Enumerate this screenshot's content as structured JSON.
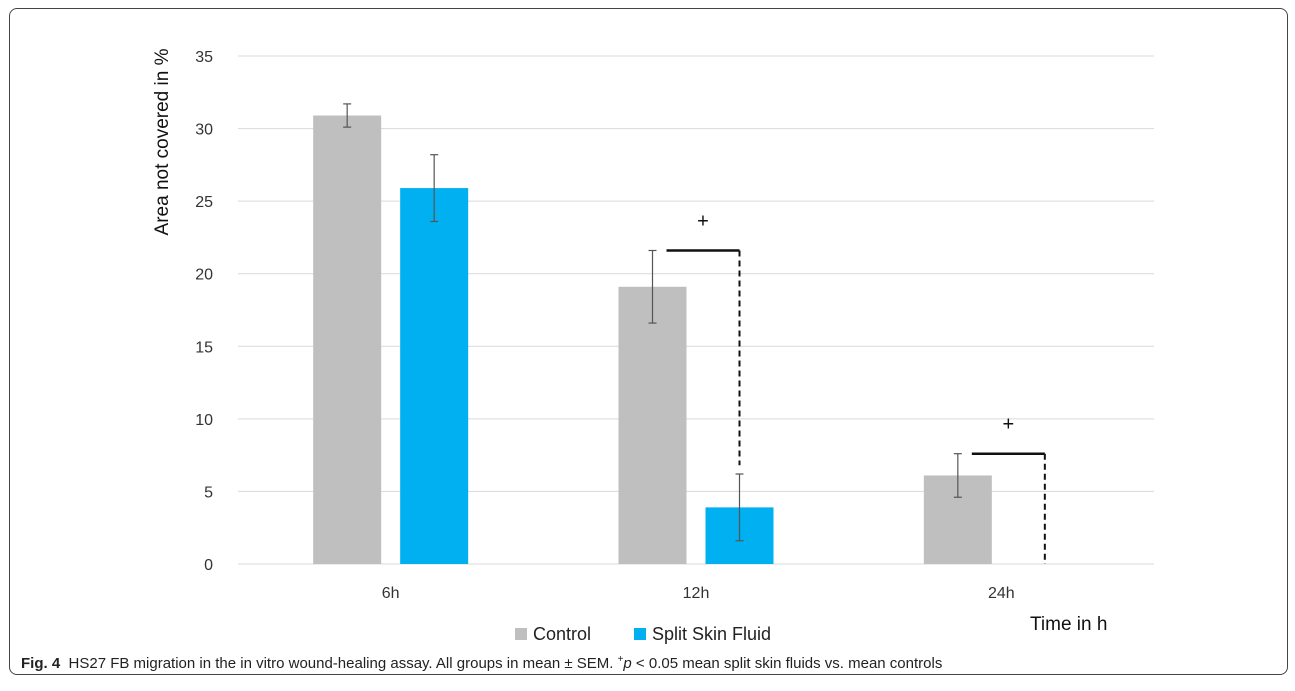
{
  "chart_data": {
    "type": "bar",
    "categories": [
      "6h",
      "12h",
      "24h"
    ],
    "ylabel": "Area not covered in %",
    "xlabel": "Time in h",
    "ylim": [
      0,
      35
    ],
    "yticks": [
      0,
      5,
      10,
      15,
      20,
      25,
      30,
      35
    ],
    "grid": true,
    "legend_position": "bottom",
    "series": [
      {
        "name": "Control",
        "color": "#bfbfbf",
        "values": [
          30.9,
          19.1,
          6.1
        ],
        "errors": [
          0.8,
          2.5,
          1.5
        ]
      },
      {
        "name": "Split Skin Fluid",
        "color": "#00b0f0",
        "values": [
          25.9,
          3.9,
          0.0
        ],
        "errors": [
          2.3,
          2.3,
          0.0
        ]
      }
    ],
    "annotations": [
      {
        "text": "+",
        "category": "12h",
        "bracket_top": 21.6,
        "bracket_bottom": 6.8
      },
      {
        "text": "+",
        "category": "24h",
        "bracket_top": 7.6,
        "bracket_bottom": 0.0
      }
    ]
  },
  "caption": {
    "label": "Fig. 4",
    "text_a": "HS27 FB migration in the in vitro wound-healing assay. All groups in mean ± SEM.",
    "sup": "+",
    "p": "p",
    "text_b": " < 0.05 mean split skin fluids vs. mean controls"
  }
}
